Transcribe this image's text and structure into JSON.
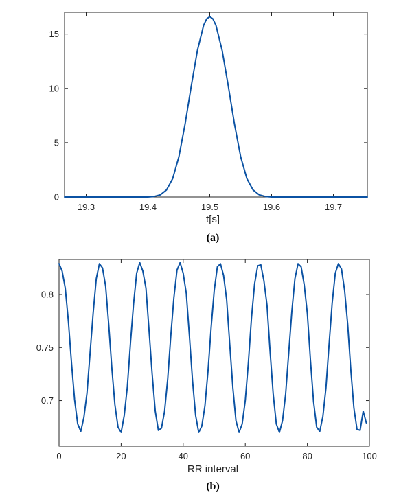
{
  "chart_data": [
    {
      "type": "line",
      "panel_label": "(a)",
      "title": "",
      "xlabel": "t[s]",
      "ylabel": "",
      "xlim": [
        19.265,
        19.755
      ],
      "ylim": [
        0,
        17
      ],
      "xticks": [
        "19.3",
        "19.4",
        "19.5",
        "19.6",
        "19.7"
      ],
      "xtick_values": [
        19.3,
        19.4,
        19.5,
        19.6,
        19.7
      ],
      "yticks": [
        "0",
        "5",
        "10",
        "15"
      ],
      "ytick_values": [
        0,
        5,
        10,
        15
      ],
      "grid": false,
      "series": [
        {
          "color": "#0b52a3",
          "x": [
            19.265,
            19.35,
            19.4,
            19.41,
            19.42,
            19.43,
            19.44,
            19.45,
            19.46,
            19.47,
            19.48,
            19.49,
            19.495,
            19.5,
            19.505,
            19.51,
            19.52,
            19.53,
            19.54,
            19.55,
            19.56,
            19.57,
            19.58,
            19.59,
            19.6,
            19.65,
            19.755
          ],
          "y": [
            0,
            0,
            0.0,
            0.05,
            0.2,
            0.65,
            1.7,
            3.7,
            6.7,
            10.2,
            13.5,
            15.8,
            16.4,
            16.6,
            16.4,
            15.8,
            13.5,
            10.2,
            6.7,
            3.7,
            1.7,
            0.65,
            0.2,
            0.05,
            0.0,
            0,
            0
          ]
        }
      ]
    },
    {
      "type": "line",
      "panel_label": "(b)",
      "title": "",
      "xlabel": "RR interval",
      "ylabel": "",
      "xlim": [
        0,
        100
      ],
      "ylim": [
        0.657,
        0.833
      ],
      "xticks": [
        "0",
        "20",
        "40",
        "60",
        "80",
        "100"
      ],
      "xtick_values": [
        0,
        20,
        40,
        60,
        80,
        100
      ],
      "yticks": [
        "0.7",
        "0.75",
        "0.8"
      ],
      "ytick_values": [
        0.7,
        0.75,
        0.8
      ],
      "grid": false,
      "series": [
        {
          "color": "#0b52a3",
          "x": [
            0,
            1,
            2,
            3,
            4,
            5,
            6,
            7,
            8,
            9,
            10,
            11,
            12,
            13,
            14,
            15,
            16,
            17,
            18,
            19,
            20,
            21,
            22,
            23,
            24,
            25,
            26,
            27,
            28,
            29,
            30,
            31,
            32,
            33,
            34,
            35,
            36,
            37,
            38,
            39,
            40,
            41,
            42,
            43,
            44,
            45,
            46,
            47,
            48,
            49,
            50,
            51,
            52,
            53,
            54,
            55,
            56,
            57,
            58,
            59,
            60,
            61,
            62,
            63,
            64,
            65,
            66,
            67,
            68,
            69,
            70,
            71,
            72,
            73,
            74,
            75,
            76,
            77,
            78,
            79,
            80,
            81,
            82,
            83,
            84,
            85,
            86,
            87,
            88,
            89,
            90,
            91,
            92,
            93,
            94,
            95,
            96,
            97,
            98,
            99
          ],
          "y": [
            0.829,
            0.822,
            0.806,
            0.775,
            0.736,
            0.701,
            0.678,
            0.671,
            0.684,
            0.707,
            0.745,
            0.783,
            0.815,
            0.829,
            0.825,
            0.808,
            0.772,
            0.731,
            0.696,
            0.675,
            0.67,
            0.686,
            0.713,
            0.754,
            0.791,
            0.82,
            0.83,
            0.822,
            0.806,
            0.766,
            0.725,
            0.69,
            0.672,
            0.674,
            0.69,
            0.72,
            0.761,
            0.797,
            0.823,
            0.83,
            0.82,
            0.801,
            0.761,
            0.719,
            0.686,
            0.67,
            0.676,
            0.695,
            0.728,
            0.769,
            0.804,
            0.826,
            0.829,
            0.818,
            0.795,
            0.753,
            0.712,
            0.681,
            0.67,
            0.678,
            0.7,
            0.736,
            0.778,
            0.81,
            0.827,
            0.828,
            0.813,
            0.79,
            0.746,
            0.706,
            0.678,
            0.67,
            0.681,
            0.706,
            0.745,
            0.784,
            0.815,
            0.829,
            0.826,
            0.809,
            0.782,
            0.738,
            0.699,
            0.675,
            0.671,
            0.685,
            0.712,
            0.753,
            0.792,
            0.82,
            0.829,
            0.824,
            0.804,
            0.772,
            0.729,
            0.693,
            0.673,
            0.672,
            0.69,
            0.679
          ]
        }
      ]
    }
  ]
}
